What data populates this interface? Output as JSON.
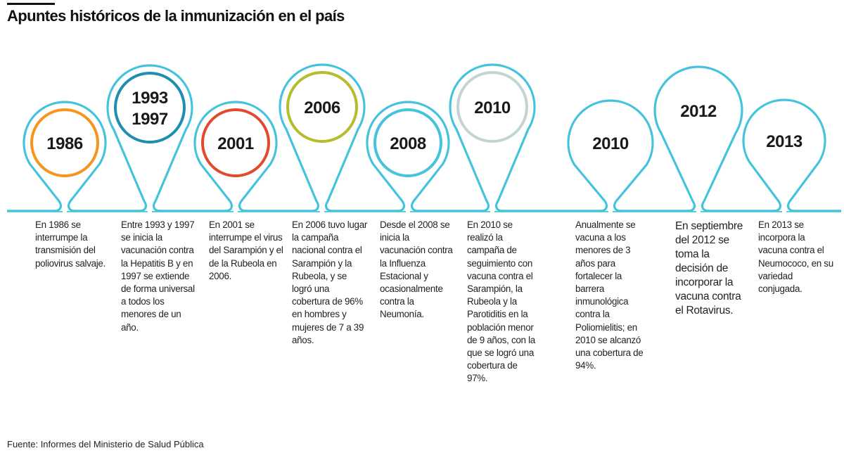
{
  "title": "Apuntes históricos de la inmunización en el país",
  "source": "Fuente: Informes del Ministerio de Salud Pública",
  "colors": {
    "line": "#45c3dc",
    "orange": "#f7941d",
    "dark_teal": "#1f8fb0",
    "red": "#e04a2f",
    "olive": "#b5bd2e",
    "light_blue": "#45c3dc",
    "gray": "#c3d4d1"
  },
  "events": [
    {
      "year_lines": [
        "1986"
      ],
      "inner_color": "#f7941d",
      "text": "En 1986 se interrumpe la transmisión del poliovirus salvaje."
    },
    {
      "year_lines": [
        "1993",
        "1997"
      ],
      "inner_color": "#1f8fb0",
      "text": "Entre 1993 y 1997 se inicia la vacunación contra la Hepatitis B y en 1997 se extiende de forma universal a todos los menores de un año."
    },
    {
      "year_lines": [
        "2001"
      ],
      "inner_color": "#e04a2f",
      "text": "En 2001 se interrumpe el virus del Sarampión y el de la Rubeola en 2006."
    },
    {
      "year_lines": [
        "2006"
      ],
      "inner_color": "#b5bd2e",
      "text": "En 2006 tuvo lugar la campaña nacional contra el Sarampión y la Rubeola, y se logró una cobertura de 96% en hombres y mujeres de 7 a 39 años."
    },
    {
      "year_lines": [
        "2008"
      ],
      "inner_color": "#45c3dc",
      "text": "Desde el 2008 se inicia la vacunación contra la Influenza Estacional y ocasionalmente contra la Neumonía."
    },
    {
      "year_lines": [
        "2010"
      ],
      "inner_color": "#c3d4d1",
      "text": "En 2010 se realizó la campaña de seguimiento con vacuna contra el Sarampión, la Rubeola y la Parotiditis en la población menor de 9 años, con la que se logró una cobertura de 97%."
    },
    {
      "year_lines": [
        "2010"
      ],
      "inner_color": null,
      "text": "Anualmente se vacuna a los menores de 3 años para fortalecer la barrera inmunológica contra la Poliomielitis; en 2010 se alcanzó una cobertura de 94%."
    },
    {
      "year_lines": [
        "2012"
      ],
      "inner_color": null,
      "text": "En septiembre del 2012 se toma la decisión de incorporar la vacuna contra el Rotavirus."
    },
    {
      "year_lines": [
        "2013"
      ],
      "inner_color": null,
      "text": "En 2013 se incorpora la vacuna contra el Neumococo, en su variedad conjugada."
    }
  ]
}
